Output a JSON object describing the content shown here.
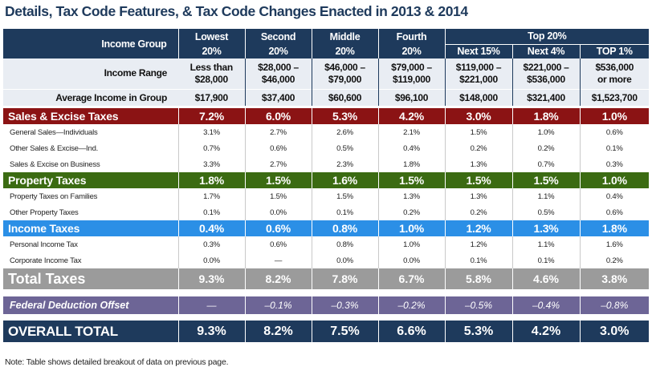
{
  "title": "Details, Tax Code Features, & Tax Code Changes Enacted in 2013 & 2014",
  "header": {
    "income_group_label": "Income Group",
    "groups": [
      {
        "name": "Lowest",
        "pct": "20%"
      },
      {
        "name": "Second",
        "pct": "20%"
      },
      {
        "name": "Middle",
        "pct": "20%"
      },
      {
        "name": "Fourth",
        "pct": "20%"
      }
    ],
    "top20_label": "Top 20%",
    "top_sub": [
      "Next 15%",
      "Next 4%",
      "TOP 1%"
    ]
  },
  "income_range": {
    "label": "Income Range",
    "values": [
      [
        "Less than",
        "$28,000"
      ],
      [
        "$28,000 –",
        "$46,000"
      ],
      [
        "$46,000 –",
        "$79,000"
      ],
      [
        "$79,000 –",
        "$119,000"
      ],
      [
        "$119,000 –",
        "$221,000"
      ],
      [
        "$221,000 –",
        "$536,000"
      ],
      [
        "$536,000",
        "or more"
      ]
    ]
  },
  "average_income": {
    "label": "Average Income in Group",
    "values": [
      "$17,900",
      "$37,400",
      "$60,600",
      "$96,100",
      "$148,000",
      "$321,400",
      "$1,523,700"
    ]
  },
  "sections": [
    {
      "label": "Sales & Excise Taxes",
      "values": [
        "7.2%",
        "6.0%",
        "5.3%",
        "4.2%",
        "3.0%",
        "1.8%",
        "1.0%"
      ],
      "rows": [
        {
          "label": "General Sales—Individuals",
          "values": [
            "3.1%",
            "2.7%",
            "2.6%",
            "2.1%",
            "1.5%",
            "1.0%",
            "0.6%"
          ]
        },
        {
          "label": "Other Sales & Excise—Ind.",
          "values": [
            "0.7%",
            "0.6%",
            "0.5%",
            "0.4%",
            "0.2%",
            "0.2%",
            "0.1%"
          ]
        },
        {
          "label": "Sales & Excise on Business",
          "values": [
            "3.3%",
            "2.7%",
            "2.3%",
            "1.8%",
            "1.3%",
            "0.7%",
            "0.3%"
          ]
        }
      ]
    },
    {
      "label": "Property Taxes",
      "values": [
        "1.8%",
        "1.5%",
        "1.6%",
        "1.5%",
        "1.5%",
        "1.5%",
        "1.0%"
      ],
      "rows": [
        {
          "label": "Property Taxes on Families",
          "values": [
            "1.7%",
            "1.5%",
            "1.5%",
            "1.3%",
            "1.3%",
            "1.1%",
            "0.4%"
          ]
        },
        {
          "label": "Other Property Taxes",
          "values": [
            "0.1%",
            "0.0%",
            "0.1%",
            "0.2%",
            "0.2%",
            "0.5%",
            "0.6%"
          ]
        }
      ]
    },
    {
      "label": "Income Taxes",
      "values": [
        "0.4%",
        "0.6%",
        "0.8%",
        "1.0%",
        "1.2%",
        "1.3%",
        "1.8%"
      ],
      "rows": [
        {
          "label": "Personal Income Tax",
          "values": [
            "0.3%",
            "0.6%",
            "0.8%",
            "1.0%",
            "1.2%",
            "1.1%",
            "1.6%"
          ]
        },
        {
          "label": "Corporate Income Tax",
          "values": [
            "0.0%",
            "—",
            "0.0%",
            "0.0%",
            "0.1%",
            "0.1%",
            "0.2%"
          ]
        }
      ]
    }
  ],
  "total_taxes": {
    "label": "Total Taxes",
    "values": [
      "9.3%",
      "8.2%",
      "7.8%",
      "6.7%",
      "5.8%",
      "4.6%",
      "3.8%"
    ]
  },
  "federal_offset": {
    "label": "Federal Deduction Offset",
    "values": [
      "—",
      "–0.1%",
      "–0.3%",
      "–0.2%",
      "–0.5%",
      "–0.4%",
      "–0.8%"
    ]
  },
  "overall_total": {
    "label": "OVERALL TOTAL",
    "values": [
      "9.3%",
      "8.2%",
      "7.5%",
      "6.6%",
      "5.3%",
      "4.2%",
      "3.0%"
    ]
  },
  "note": "Note: Table shows detailed breakout of data on previous page.",
  "colors": {
    "navy": "#1e3a5c",
    "sales": "#8b1314",
    "property": "#3b6b12",
    "income": "#2b8fe6",
    "total": "#9b9b9b",
    "federal": "#6d6596"
  }
}
